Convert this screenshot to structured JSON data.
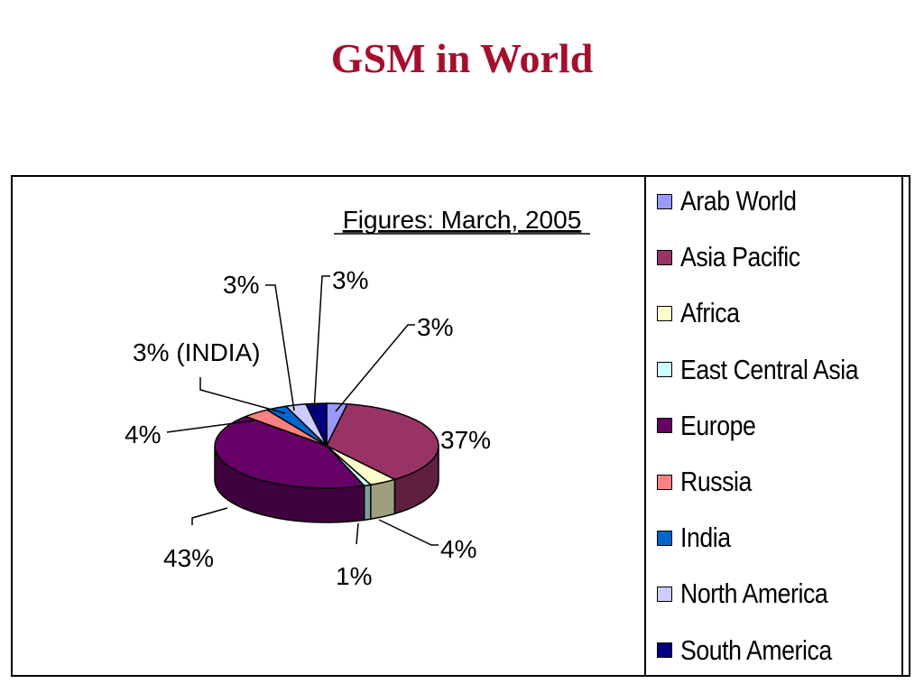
{
  "page": {
    "title": "GSM in World"
  },
  "chart_data": {
    "type": "pie",
    "title": "",
    "subtitle": "Figures: March, 2005",
    "legend_position": "right",
    "slices": [
      {
        "name": "Arab World",
        "value": 3,
        "label": "3%",
        "color": "#9999ff"
      },
      {
        "name": "Asia Pacific",
        "value": 37,
        "label": "37%",
        "color": "#993366"
      },
      {
        "name": "Africa",
        "value": 4,
        "label": "4%",
        "color": "#ffffcc"
      },
      {
        "name": "East Central Asia",
        "value": 1,
        "label": "1%",
        "color": "#ccffff"
      },
      {
        "name": "Europe",
        "value": 43,
        "label": "43%",
        "color": "#660066"
      },
      {
        "name": "Russia",
        "value": 4,
        "label": "4%",
        "color": "#ff8080"
      },
      {
        "name": "India",
        "value": 3,
        "label": "3% (INDIA)",
        "color": "#0066cc"
      },
      {
        "name": "North America",
        "value": 3,
        "label": "3%",
        "color": "#ccccff"
      },
      {
        "name": "South America",
        "value": 3,
        "label": "3%",
        "color": "#000080"
      }
    ]
  }
}
